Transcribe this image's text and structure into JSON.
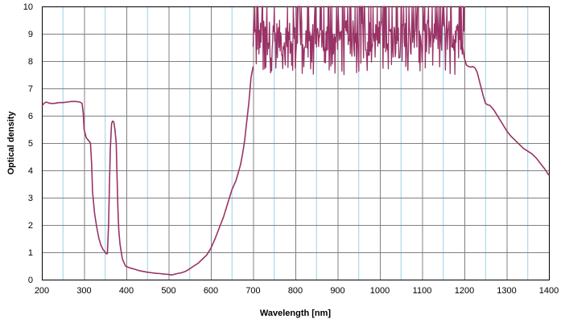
{
  "chart_data": {
    "type": "line",
    "title": "",
    "xlabel": "Wavelength [nm]",
    "ylabel": "Optical density",
    "xlim": [
      200,
      1400
    ],
    "ylim": [
      0,
      10
    ],
    "x_ticks": [
      "200",
      "300",
      "400",
      "500",
      "600",
      "700",
      "800",
      "900",
      "1000",
      "1100",
      "1200",
      "1300",
      "1400"
    ],
    "y_ticks": [
      "0",
      "1",
      "2",
      "3",
      "4",
      "5",
      "6",
      "7",
      "8",
      "9",
      "10"
    ],
    "grid": {
      "major_x": "on",
      "minor_x": "on (every 50)",
      "major_y": "on"
    },
    "legend": "none",
    "colors": {
      "series": "#993366",
      "major_grid": "#808080",
      "minor_grid": "#9dcfe8",
      "frame": "#000000"
    },
    "series": [
      {
        "x": [
          200,
          205,
          210,
          220,
          230,
          240,
          250,
          260,
          270,
          280,
          290,
          295,
          298,
          300,
          305,
          310,
          315,
          318,
          320,
          325,
          330,
          335,
          340,
          345,
          350,
          352,
          355,
          358,
          360,
          362,
          365,
          367,
          370,
          373,
          376,
          378,
          380,
          382,
          385,
          388,
          390,
          392,
          395,
          398,
          400,
          410,
          420,
          430,
          440,
          450,
          460,
          470,
          480,
          490,
          500,
          505,
          510,
          515,
          520,
          530,
          540,
          550,
          560,
          570,
          580,
          590,
          600,
          610,
          620,
          630,
          640,
          650,
          660,
          670,
          675,
          680,
          685,
          690,
          695,
          700
        ],
        "y": [
          6.35,
          6.45,
          6.5,
          6.45,
          6.45,
          6.48,
          6.48,
          6.5,
          6.52,
          6.52,
          6.5,
          6.45,
          6.1,
          5.5,
          5.2,
          5.1,
          5.0,
          4.2,
          3.2,
          2.4,
          1.9,
          1.5,
          1.25,
          1.1,
          1.0,
          0.95,
          0.95,
          2.0,
          3.5,
          4.8,
          5.7,
          5.8,
          5.78,
          5.5,
          5.0,
          3.8,
          2.6,
          1.8,
          1.3,
          1.0,
          0.8,
          0.7,
          0.6,
          0.5,
          0.48,
          0.42,
          0.38,
          0.33,
          0.3,
          0.27,
          0.25,
          0.23,
          0.22,
          0.2,
          0.19,
          0.17,
          0.18,
          0.2,
          0.22,
          0.25,
          0.3,
          0.4,
          0.5,
          0.6,
          0.75,
          0.9,
          1.15,
          1.5,
          1.9,
          2.3,
          2.8,
          3.3,
          3.65,
          4.2,
          4.6,
          5.1,
          5.8,
          6.5,
          7.4,
          7.8
        ]
      },
      {
        "x": [
          700,
          1200
        ],
        "noisy_band": {
          "min": 7.5,
          "max": 10,
          "median": 8.6
        }
      },
      {
        "x": [
          1195,
          1200,
          1205,
          1210,
          1215,
          1220,
          1225,
          1230,
          1235,
          1240,
          1245,
          1250,
          1255,
          1260,
          1265,
          1270,
          1280,
          1290,
          1300,
          1310,
          1320,
          1330,
          1340,
          1350,
          1360,
          1370,
          1380,
          1390,
          1400
        ],
        "y": [
          8.6,
          8.1,
          7.85,
          7.8,
          7.78,
          7.8,
          7.75,
          7.6,
          7.3,
          7.0,
          6.7,
          6.45,
          6.4,
          6.38,
          6.3,
          6.2,
          5.95,
          5.7,
          5.45,
          5.25,
          5.1,
          4.95,
          4.8,
          4.7,
          4.6,
          4.45,
          4.25,
          4.05,
          3.82
        ]
      }
    ]
  }
}
